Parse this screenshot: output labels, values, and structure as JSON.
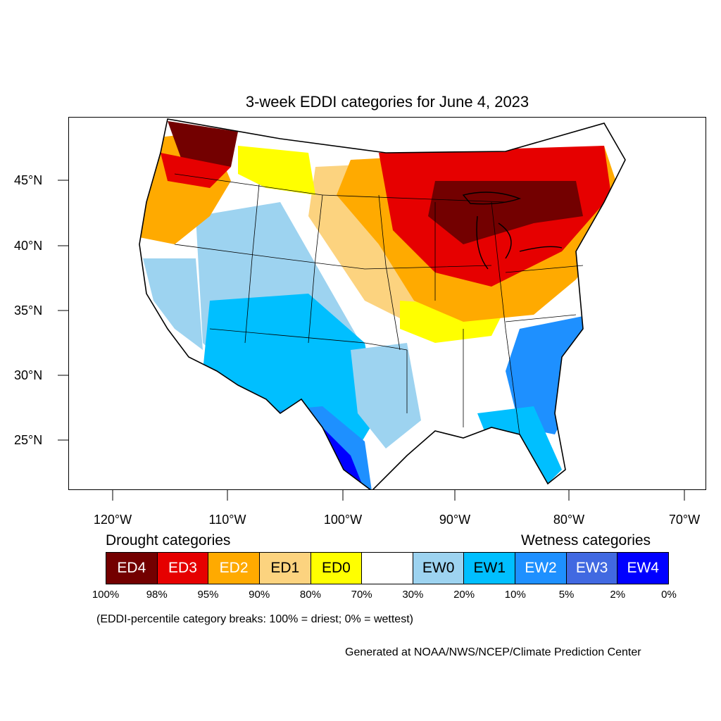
{
  "title": "3-week EDDI categories for June 4, 2023",
  "lat_labels": [
    "45°N",
    "40°N",
    "35°N",
    "30°N",
    "25°N"
  ],
  "lon_labels": [
    "120°W",
    "110°W",
    "100°W",
    "90°W",
    "80°W",
    "70°W"
  ],
  "map_regions": [
    {
      "id": "pacific-nw-ed4",
      "category": "ED4"
    },
    {
      "id": "northwest-ed2",
      "category": "ED2"
    },
    {
      "id": "northern-plains-ed1",
      "category": "ED1"
    },
    {
      "id": "upper-midwest-ed3",
      "category": "ED3"
    },
    {
      "id": "great-lakes-ed4",
      "category": "ED4"
    },
    {
      "id": "ohio-valley-ed3",
      "category": "ED3"
    },
    {
      "id": "mid-atlantic-ed2",
      "category": "ED2"
    },
    {
      "id": "rockies-ew1",
      "category": "EW1"
    },
    {
      "id": "southwest-ew2",
      "category": "EW2"
    },
    {
      "id": "west-texas-ew4",
      "category": "EW4"
    },
    {
      "id": "carolinas-ew2",
      "category": "EW2"
    },
    {
      "id": "florida-ew1",
      "category": "EW1"
    }
  ],
  "legend": {
    "drought_label": "Drought categories",
    "wetness_label": "Wetness categories",
    "categories": [
      {
        "label": "ED4",
        "color": "#730000",
        "text_color": "#ffffff"
      },
      {
        "label": "ED3",
        "color": "#e60000",
        "text_color": "#ffffff"
      },
      {
        "label": "ED2",
        "color": "#ffaa00",
        "text_color": "#ffffff"
      },
      {
        "label": "ED1",
        "color": "#fcd37f",
        "text_color": "#000000"
      },
      {
        "label": "ED0",
        "color": "#ffff00",
        "text_color": "#000000"
      },
      {
        "label": "",
        "color": "#ffffff",
        "text_color": "#000000"
      },
      {
        "label": "EW0",
        "color": "#9dd3f0",
        "text_color": "#000000"
      },
      {
        "label": "EW1",
        "color": "#00bfff",
        "text_color": "#000000"
      },
      {
        "label": "EW2",
        "color": "#1e90ff",
        "text_color": "#ffffff"
      },
      {
        "label": "EW3",
        "color": "#4169e1",
        "text_color": "#ffffff"
      },
      {
        "label": "EW4",
        "color": "#0000ff",
        "text_color": "#ffffff"
      }
    ],
    "breaks": [
      "100%",
      "98%",
      "95%",
      "90%",
      "80%",
      "70%",
      "30%",
      "20%",
      "10%",
      "5%",
      "2%",
      "0%"
    ]
  },
  "note": "(EDDI-percentile category breaks: 100% = driest; 0% = wettest)",
  "credit": "Generated at NOAA/NWS/NCEP/Climate Prediction Center"
}
